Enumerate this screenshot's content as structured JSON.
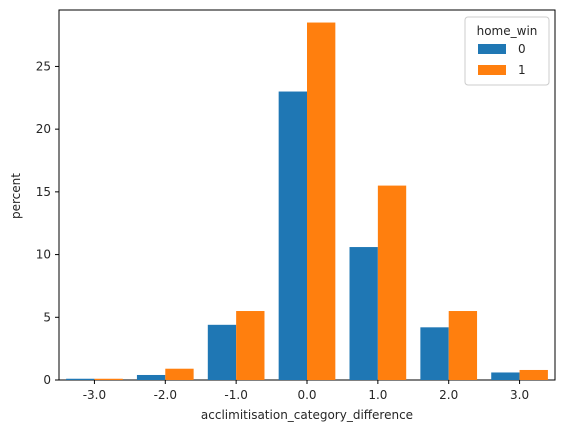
{
  "chart_data": {
    "type": "bar",
    "title": "",
    "xlabel": "acclimitisation_category_difference",
    "ylabel": "percent",
    "categories": [
      "-3.0",
      "-2.0",
      "-1.0",
      "0.0",
      "1.0",
      "2.0",
      "3.0"
    ],
    "ylim": [
      0,
      29.5
    ],
    "yticks": [
      "0",
      "5",
      "10",
      "15",
      "20",
      "25"
    ],
    "ytick_values": [
      0,
      5,
      10,
      15,
      20,
      25
    ],
    "grid": false,
    "legend": {
      "title": "home_win",
      "placement": "top-right"
    },
    "series": [
      {
        "name": "0",
        "color": "#1f77b4",
        "values": [
          0.1,
          0.4,
          4.4,
          23.0,
          10.6,
          4.2,
          0.6
        ]
      },
      {
        "name": "1",
        "color": "#ff7f0e",
        "values": [
          0.1,
          0.9,
          5.5,
          28.5,
          15.5,
          5.5,
          0.8
        ]
      }
    ]
  }
}
